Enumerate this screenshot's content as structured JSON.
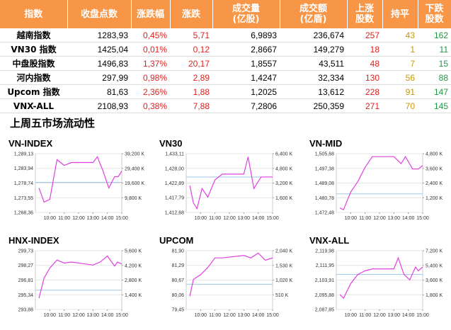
{
  "table": {
    "header": [
      [
        "指数"
      ],
      [
        "收盘点数"
      ],
      [
        "涨跌幅"
      ],
      [
        "涨跌"
      ],
      [
        "成交量",
        "(亿股)"
      ],
      [
        "成交额",
        "(亿盾)"
      ],
      [
        "上涨",
        "股数"
      ],
      [
        "持平"
      ],
      [
        "下跌",
        "股数"
      ]
    ],
    "rows": [
      [
        "越南指数",
        "1283,93",
        "0,45%",
        "5,71",
        "6,9893",
        "236,674",
        "257",
        "43",
        "162"
      ],
      [
        "VN30 指数",
        "1425,04",
        "0,01%",
        "0,12",
        "2,8667",
        "149,279",
        "18",
        "1",
        "11"
      ],
      [
        "中盘股指数",
        "1496,83",
        "1,37%",
        "20,17",
        "1,8557",
        "43,511",
        "48",
        "7",
        "15"
      ],
      [
        "河内指数",
        "297,99",
        "0,98%",
        "2,89",
        "1,4247",
        "32,334",
        "130",
        "56",
        "88"
      ],
      [
        "Upcom 指数",
        "81,63",
        "2,36%",
        "1,88",
        "1,2025",
        "13,612",
        "228",
        "91",
        "147"
      ],
      [
        "VNX-ALL",
        "2108,93",
        "0,38%",
        "7,88",
        "7,2806",
        "250,359",
        "271",
        "70",
        "145"
      ]
    ]
  },
  "section_title": "上周五市场流动性",
  "charts": [
    {
      "type": "line",
      "title": "VN-INDEX",
      "color": "#e040e0",
      "ref_color": "#9ec9ee",
      "x": [
        9.25,
        9.6,
        10.0,
        10.5,
        11.0,
        11.5,
        13.0,
        13.3,
        13.7,
        14.1,
        14.5,
        14.75,
        15.0
      ],
      "values": [
        1277,
        1272,
        1273,
        1287,
        1285,
        1286,
        1286,
        1288,
        1283,
        1277,
        1281,
        1281,
        1283
      ],
      "ref": 1279,
      "xlim": [
        9.0,
        15.0
      ],
      "xticks": [
        {
          "value": 10,
          "label": "10:00"
        },
        {
          "value": 11,
          "label": "11:00"
        },
        {
          "value": 12,
          "label": "12:00"
        },
        {
          "value": 13,
          "label": "13:00"
        },
        {
          "value": 14,
          "label": "14:00"
        },
        {
          "value": 15,
          "label": "15:00"
        }
      ],
      "ylim": [
        1268.36,
        1289.13
      ],
      "yticks": [
        {
          "value": 1268.36,
          "label": "1,268,36"
        },
        {
          "value": 1273.55,
          "label": "1,273,55"
        },
        {
          "value": 1278.74,
          "label": "1,278,74"
        },
        {
          "value": 1283.94,
          "label": "1,283,94"
        },
        {
          "value": 1289.13,
          "label": "1,289,13"
        }
      ],
      "y2lim": [
        0,
        39200
      ],
      "y2ticks": [
        {
          "value": 9800,
          "label": "9,800 K"
        },
        {
          "value": 19600,
          "label": "19,600 K"
        },
        {
          "value": 29400,
          "label": "29,400 K"
        },
        {
          "value": 39200,
          "label": "39,200 K"
        }
      ]
    },
    {
      "type": "line",
      "title": "VN30",
      "color": "#e040e0",
      "ref_color": "#9ec9ee",
      "x": [
        9.25,
        9.5,
        9.75,
        10.1,
        10.5,
        11.0,
        11.5,
        13.0,
        13.3,
        13.7,
        14.2,
        14.7,
        15.0
      ],
      "values": [
        1422,
        1416,
        1414,
        1421,
        1418,
        1424,
        1426,
        1426,
        1432,
        1421,
        1425,
        1425,
        1425
      ],
      "ref": 1425,
      "xlim": [
        9.0,
        15.0
      ],
      "xticks": [
        {
          "value": 10,
          "label": "10:00"
        },
        {
          "value": 11,
          "label": "11:00"
        },
        {
          "value": 12,
          "label": "12:00"
        },
        {
          "value": 13,
          "label": "13:00"
        },
        {
          "value": 14,
          "label": "14:00"
        },
        {
          "value": 15,
          "label": "15:00"
        }
      ],
      "ylim": [
        1412.68,
        1433.11
      ],
      "yticks": [
        {
          "value": 1412.68,
          "label": "1,412,68"
        },
        {
          "value": 1417.79,
          "label": "1,417,79"
        },
        {
          "value": 1422.89,
          "label": "1,422,89"
        },
        {
          "value": 1428.0,
          "label": "1,428,00"
        },
        {
          "value": 1433.11,
          "label": "1,433,11"
        }
      ],
      "y2lim": [
        0,
        6400
      ],
      "y2ticks": [
        {
          "value": 1600,
          "label": "1,600 K"
        },
        {
          "value": 3200,
          "label": "3,200 K"
        },
        {
          "value": 4800,
          "label": "4,800 K"
        },
        {
          "value": 6400,
          "label": "6,400 K"
        }
      ]
    },
    {
      "type": "line",
      "title": "VN-MID",
      "color": "#e040e0",
      "ref_color": "#9ec9ee",
      "x": [
        9.25,
        9.5,
        10.0,
        10.5,
        11.0,
        11.5,
        13.0,
        13.5,
        13.8,
        14.3,
        14.7,
        15.0
      ],
      "values": [
        1475,
        1474,
        1484,
        1490,
        1498,
        1504,
        1504,
        1500,
        1504,
        1497,
        1497,
        1499
      ],
      "ref": 1483,
      "xlim": [
        9.0,
        15.0
      ],
      "xticks": [
        {
          "value": 10,
          "label": "10:00"
        },
        {
          "value": 11,
          "label": "11:00"
        },
        {
          "value": 12,
          "label": "12:00"
        },
        {
          "value": 13,
          "label": "13:00"
        },
        {
          "value": 14,
          "label": "14:00"
        },
        {
          "value": 15,
          "label": "15:00"
        }
      ],
      "ylim": [
        1472.48,
        1505.68
      ],
      "yticks": [
        {
          "value": 1472.48,
          "label": "1,472,48"
        },
        {
          "value": 1480.78,
          "label": "1,480,78"
        },
        {
          "value": 1489.08,
          "label": "1,489,08"
        },
        {
          "value": 1497.38,
          "label": "1,497,38"
        },
        {
          "value": 1505.68,
          "label": "1,505,68"
        }
      ],
      "y2lim": [
        0,
        4800
      ],
      "y2ticks": [
        {
          "value": 1200,
          "label": "1,200 K"
        },
        {
          "value": 2400,
          "label": "2,400 K"
        },
        {
          "value": 3600,
          "label": "3,600 K"
        },
        {
          "value": 4800,
          "label": "4,800 K"
        }
      ]
    },
    {
      "type": "line",
      "title": "HNX-INDEX",
      "color": "#e040e0",
      "ref_color": "#9ec9ee",
      "x": [
        9.25,
        9.6,
        10.0,
        10.5,
        11.0,
        11.5,
        13.0,
        13.5,
        14.0,
        14.5,
        14.7,
        15.0
      ],
      "values": [
        295,
        297,
        298,
        298.8,
        298.5,
        298.6,
        298.3,
        298.6,
        299.2,
        298.2,
        298.6,
        298.4
      ],
      "ref": 295.8,
      "xlim": [
        9.0,
        15.0
      ],
      "xticks": [
        {
          "value": 10,
          "label": "10:00"
        },
        {
          "value": 11,
          "label": "11:00"
        },
        {
          "value": 12,
          "label": "12:00"
        },
        {
          "value": 13,
          "label": "13:00"
        },
        {
          "value": 14,
          "label": "14:00"
        },
        {
          "value": 15,
          "label": "15:00"
        }
      ],
      "ylim": [
        293.88,
        299.73
      ],
      "yticks": [
        {
          "value": 293.88,
          "label": "293,88"
        },
        {
          "value": 295.34,
          "label": "295,34"
        },
        {
          "value": 296.81,
          "label": "296,81"
        },
        {
          "value": 298.27,
          "label": "298,27"
        },
        {
          "value": 299.73,
          "label": "299,73"
        }
      ],
      "y2lim": [
        0,
        5600
      ],
      "y2ticks": [
        {
          "value": 1400,
          "label": "1,400 K"
        },
        {
          "value": 2800,
          "label": "2,800 K"
        },
        {
          "value": 4200,
          "label": "4,200 K"
        },
        {
          "value": 5600,
          "label": "5,600 K"
        }
      ]
    },
    {
      "type": "line",
      "title": "UPCOM",
      "color": "#e040e0",
      "ref_color": "#9ec9ee",
      "x": [
        9.25,
        9.5,
        10.0,
        10.5,
        11.0,
        11.5,
        13.0,
        13.5,
        14.0,
        14.5,
        15.0
      ],
      "values": [
        80.0,
        80.7,
        80.9,
        81.2,
        81.6,
        81.6,
        81.7,
        81.6,
        81.8,
        81.5,
        81.6
      ],
      "ref": 80.5,
      "xlim": [
        9.0,
        15.0
      ],
      "xticks": [
        {
          "value": 10,
          "label": "10:00"
        },
        {
          "value": 11,
          "label": "11:00"
        },
        {
          "value": 12,
          "label": "12:00"
        },
        {
          "value": 13,
          "label": "13:00"
        },
        {
          "value": 14,
          "label": "14:00"
        },
        {
          "value": 15,
          "label": "15:00"
        }
      ],
      "ylim": [
        79.45,
        81.9
      ],
      "yticks": [
        {
          "value": 79.45,
          "label": "79,45"
        },
        {
          "value": 80.06,
          "label": "80,06"
        },
        {
          "value": 80.67,
          "label": "80,67"
        },
        {
          "value": 81.29,
          "label": "81,29"
        },
        {
          "value": 81.9,
          "label": "81,90"
        }
      ],
      "y2lim": [
        0,
        2040
      ],
      "y2ticks": [
        {
          "value": 510,
          "label": "510 K"
        },
        {
          "value": 1020,
          "label": "1,020 K"
        },
        {
          "value": 1530,
          "label": "1,530 K"
        },
        {
          "value": 2040,
          "label": "2,040 K"
        }
      ]
    },
    {
      "type": "line",
      "title": "VNX-ALL",
      "color": "#e040e0",
      "ref_color": "#9ec9ee",
      "x": [
        9.25,
        9.5,
        10.0,
        10.5,
        11.0,
        11.5,
        13.0,
        13.3,
        13.7,
        14.1,
        14.5,
        14.7,
        15.0
      ],
      "values": [
        2096,
        2094,
        2102,
        2107,
        2109,
        2110,
        2110,
        2116,
        2107,
        2104,
        2111,
        2109,
        2111
      ],
      "ref": 2107,
      "xlim": [
        9.0,
        15.0
      ],
      "xticks": [
        {
          "value": 10,
          "label": "10:00"
        },
        {
          "value": 11,
          "label": "11:00"
        },
        {
          "value": 12,
          "label": "12:00"
        },
        {
          "value": 13,
          "label": "13:00"
        },
        {
          "value": 14,
          "label": "14:00"
        },
        {
          "value": 15,
          "label": "15:00"
        }
      ],
      "ylim": [
        2087.85,
        2119.98
      ],
      "yticks": [
        {
          "value": 2087.85,
          "label": "2,087,85"
        },
        {
          "value": 2095.88,
          "label": "2,095,88"
        },
        {
          "value": 2103.91,
          "label": "2,103,91"
        },
        {
          "value": 2111.95,
          "label": "2,111,95"
        },
        {
          "value": 2119.98,
          "label": "2,119,98"
        }
      ],
      "y2lim": [
        0,
        7200
      ],
      "y2ticks": [
        {
          "value": 1800,
          "label": "1,800 K"
        },
        {
          "value": 3600,
          "label": "3,600 K"
        },
        {
          "value": 5400,
          "label": "5,400 K"
        },
        {
          "value": 7200,
          "label": "7,200 K"
        }
      ]
    }
  ]
}
